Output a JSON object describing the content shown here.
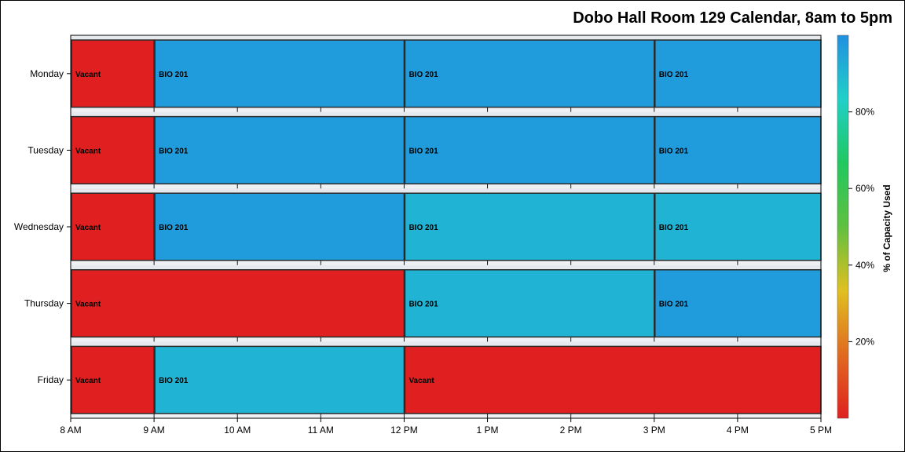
{
  "chart_data": {
    "type": "bar",
    "subtype": "timeline-gantt",
    "title": "Dobo Hall Room 129 Calendar, 8am to 5pm",
    "xlabel": "",
    "ylabel": "",
    "x_ticks": [
      "8 AM",
      "9 AM",
      "10 AM",
      "11 AM",
      "12 PM",
      "1 PM",
      "2 PM",
      "3 PM",
      "4 PM",
      "5 PM"
    ],
    "xlim": [
      8,
      17
    ],
    "categories": [
      "Monday",
      "Tuesday",
      "Wednesday",
      "Thursday",
      "Friday"
    ],
    "grid": true,
    "colorbar": {
      "title": "% of Capacity Used",
      "range": [
        0,
        100
      ],
      "ticks": [
        "20%",
        "40%",
        "60%",
        "80%"
      ],
      "tick_values": [
        20,
        40,
        60,
        80
      ],
      "gradient": [
        "#e02020",
        "#e06a20",
        "#e0c020",
        "#60c040",
        "#20c860",
        "#20d0c8",
        "#2090e0"
      ]
    },
    "series": [
      {
        "day": "Monday",
        "segments": [
          {
            "start": 8,
            "end": 9,
            "label": "Vacant",
            "capacity": 0
          },
          {
            "start": 9,
            "end": 12,
            "label": "BIO 201",
            "capacity": 97
          },
          {
            "start": 12,
            "end": 15,
            "label": "BIO 201",
            "capacity": 97
          },
          {
            "start": 15,
            "end": 17,
            "label": "BIO 201",
            "capacity": 97
          }
        ]
      },
      {
        "day": "Tuesday",
        "segments": [
          {
            "start": 8,
            "end": 9,
            "label": "Vacant",
            "capacity": 0
          },
          {
            "start": 9,
            "end": 12,
            "label": "BIO 201",
            "capacity": 97
          },
          {
            "start": 12,
            "end": 15,
            "label": "BIO 201",
            "capacity": 97
          },
          {
            "start": 15,
            "end": 17,
            "label": "BIO 201",
            "capacity": 97
          }
        ]
      },
      {
        "day": "Wednesday",
        "segments": [
          {
            "start": 8,
            "end": 9,
            "label": "Vacant",
            "capacity": 0
          },
          {
            "start": 9,
            "end": 12,
            "label": "BIO 201",
            "capacity": 97
          },
          {
            "start": 12,
            "end": 15,
            "label": "BIO 201",
            "capacity": 91
          },
          {
            "start": 15,
            "end": 17,
            "label": "BIO 201",
            "capacity": 91
          }
        ]
      },
      {
        "day": "Thursday",
        "segments": [
          {
            "start": 8,
            "end": 12,
            "label": "Vacant",
            "capacity": 0
          },
          {
            "start": 12,
            "end": 15,
            "label": "BIO 201",
            "capacity": 91
          },
          {
            "start": 15,
            "end": 17,
            "label": "BIO 201",
            "capacity": 97
          }
        ]
      },
      {
        "day": "Friday",
        "segments": [
          {
            "start": 8,
            "end": 9,
            "label": "Vacant",
            "capacity": 0
          },
          {
            "start": 9,
            "end": 12,
            "label": "BIO 201",
            "capacity": 91
          },
          {
            "start": 12,
            "end": 17,
            "label": "Vacant",
            "capacity": 0
          }
        ]
      }
    ]
  }
}
